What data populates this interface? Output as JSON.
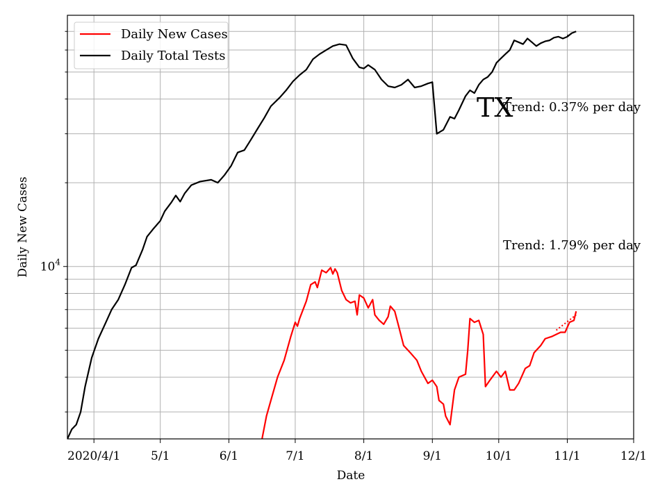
{
  "chart_data": {
    "type": "line",
    "title": "",
    "xlabel": "Date",
    "ylabel": "Daily New Cases",
    "y_scale": "log",
    "ylim": [
      2400,
      80000
    ],
    "xlim": [
      "2020-03-20",
      "2020-12-01"
    ],
    "x_ticks": [
      {
        "date": "2020-04-01",
        "label": "2020/4/1"
      },
      {
        "date": "2020-05-01",
        "label": "5/1"
      },
      {
        "date": "2020-06-01",
        "label": "6/1"
      },
      {
        "date": "2020-07-01",
        "label": "7/1"
      },
      {
        "date": "2020-08-01",
        "label": "8/1"
      },
      {
        "date": "2020-09-01",
        "label": "9/1"
      },
      {
        "date": "2020-10-01",
        "label": "10/1"
      },
      {
        "date": "2020-11-01",
        "label": "11/1"
      },
      {
        "date": "2020-12-01",
        "label": "12/1"
      }
    ],
    "y_major_tick": {
      "value": 10000,
      "label_base": "10",
      "label_exp": "4"
    },
    "y_minor_ticks": [
      3000,
      4000,
      5000,
      6000,
      7000,
      8000,
      9000,
      20000,
      30000,
      40000,
      50000,
      60000,
      70000
    ],
    "grid": true,
    "legend": {
      "position": "top-left"
    },
    "series": [
      {
        "name": "Daily New Cases",
        "color": "#ff0000",
        "points": [
          [
            "2020-06-16",
            2400
          ],
          [
            "2020-06-18",
            2900
          ],
          [
            "2020-06-20",
            3300
          ],
          [
            "2020-06-23",
            4000
          ],
          [
            "2020-06-26",
            4600
          ],
          [
            "2020-06-29",
            5600
          ],
          [
            "2020-07-01",
            6300
          ],
          [
            "2020-07-02",
            6100
          ],
          [
            "2020-07-03",
            6500
          ],
          [
            "2020-07-06",
            7500
          ],
          [
            "2020-07-08",
            8600
          ],
          [
            "2020-07-10",
            8800
          ],
          [
            "2020-07-11",
            8400
          ],
          [
            "2020-07-13",
            9700
          ],
          [
            "2020-07-15",
            9500
          ],
          [
            "2020-07-17",
            9900
          ],
          [
            "2020-07-18",
            9400
          ],
          [
            "2020-07-19",
            9800
          ],
          [
            "2020-07-20",
            9500
          ],
          [
            "2020-07-22",
            8200
          ],
          [
            "2020-07-24",
            7600
          ],
          [
            "2020-07-26",
            7400
          ],
          [
            "2020-07-28",
            7500
          ],
          [
            "2020-07-29",
            6700
          ],
          [
            "2020-07-30",
            7900
          ],
          [
            "2020-08-01",
            7700
          ],
          [
            "2020-08-03",
            7100
          ],
          [
            "2020-08-05",
            7600
          ],
          [
            "2020-08-06",
            6700
          ],
          [
            "2020-08-08",
            6400
          ],
          [
            "2020-08-10",
            6200
          ],
          [
            "2020-08-12",
            6600
          ],
          [
            "2020-08-13",
            7200
          ],
          [
            "2020-08-15",
            6900
          ],
          [
            "2020-08-17",
            6000
          ],
          [
            "2020-08-19",
            5200
          ],
          [
            "2020-08-22",
            4900
          ],
          [
            "2020-08-25",
            4600
          ],
          [
            "2020-08-27",
            4200
          ],
          [
            "2020-08-30",
            3800
          ],
          [
            "2020-09-01",
            3900
          ],
          [
            "2020-09-03",
            3700
          ],
          [
            "2020-09-04",
            3300
          ],
          [
            "2020-09-06",
            3200
          ],
          [
            "2020-09-07",
            2900
          ],
          [
            "2020-09-09",
            2700
          ],
          [
            "2020-09-11",
            3600
          ],
          [
            "2020-09-13",
            4000
          ],
          [
            "2020-09-16",
            4100
          ],
          [
            "2020-09-17",
            5000
          ],
          [
            "2020-09-18",
            6500
          ],
          [
            "2020-09-20",
            6300
          ],
          [
            "2020-09-22",
            6400
          ],
          [
            "2020-09-24",
            5700
          ],
          [
            "2020-09-25",
            3700
          ],
          [
            "2020-09-27",
            3900
          ],
          [
            "2020-09-30",
            4200
          ],
          [
            "2020-10-02",
            4000
          ],
          [
            "2020-10-04",
            4200
          ],
          [
            "2020-10-06",
            3600
          ],
          [
            "2020-10-08",
            3600
          ],
          [
            "2020-10-10",
            3800
          ],
          [
            "2020-10-13",
            4300
          ],
          [
            "2020-10-15",
            4400
          ],
          [
            "2020-10-17",
            4900
          ],
          [
            "2020-10-20",
            5200
          ],
          [
            "2020-10-22",
            5500
          ],
          [
            "2020-10-25",
            5600
          ],
          [
            "2020-10-27",
            5700
          ],
          [
            "2020-10-29",
            5800
          ],
          [
            "2020-10-31",
            5800
          ],
          [
            "2020-11-02",
            6300
          ],
          [
            "2020-11-04",
            6400
          ],
          [
            "2020-11-05",
            6900
          ]
        ]
      },
      {
        "name": "Daily Total Tests",
        "color": "#000000",
        "points": [
          [
            "2020-03-20",
            2400
          ],
          [
            "2020-03-22",
            2600
          ],
          [
            "2020-03-24",
            2700
          ],
          [
            "2020-03-26",
            3000
          ],
          [
            "2020-03-28",
            3700
          ],
          [
            "2020-03-31",
            4700
          ],
          [
            "2020-04-03",
            5500
          ],
          [
            "2020-04-06",
            6200
          ],
          [
            "2020-04-09",
            7000
          ],
          [
            "2020-04-12",
            7600
          ],
          [
            "2020-04-15",
            8600
          ],
          [
            "2020-04-18",
            9900
          ],
          [
            "2020-04-20",
            10100
          ],
          [
            "2020-04-23",
            11500
          ],
          [
            "2020-04-25",
            12800
          ],
          [
            "2020-04-28",
            13700
          ],
          [
            "2020-05-01",
            14600
          ],
          [
            "2020-05-03",
            15800
          ],
          [
            "2020-05-06",
            17000
          ],
          [
            "2020-05-08",
            18000
          ],
          [
            "2020-05-10",
            17100
          ],
          [
            "2020-05-12",
            18300
          ],
          [
            "2020-05-15",
            19600
          ],
          [
            "2020-05-19",
            20200
          ],
          [
            "2020-05-24",
            20500
          ],
          [
            "2020-05-27",
            20000
          ],
          [
            "2020-05-30",
            21300
          ],
          [
            "2020-06-02",
            23000
          ],
          [
            "2020-06-05",
            25700
          ],
          [
            "2020-06-08",
            26200
          ],
          [
            "2020-06-11",
            28600
          ],
          [
            "2020-06-14",
            31300
          ],
          [
            "2020-06-17",
            34200
          ],
          [
            "2020-06-20",
            37700
          ],
          [
            "2020-06-24",
            40500
          ],
          [
            "2020-06-27",
            43100
          ],
          [
            "2020-06-30",
            46300
          ],
          [
            "2020-07-03",
            48800
          ],
          [
            "2020-07-06",
            51000
          ],
          [
            "2020-07-09",
            55600
          ],
          [
            "2020-07-12",
            58000
          ],
          [
            "2020-07-15",
            60000
          ],
          [
            "2020-07-18",
            62000
          ],
          [
            "2020-07-21",
            63000
          ],
          [
            "2020-07-24",
            62500
          ],
          [
            "2020-07-27",
            56000
          ],
          [
            "2020-07-30",
            52000
          ],
          [
            "2020-08-01",
            51500
          ],
          [
            "2020-08-03",
            53000
          ],
          [
            "2020-08-06",
            51000
          ],
          [
            "2020-08-09",
            47000
          ],
          [
            "2020-08-12",
            44500
          ],
          [
            "2020-08-15",
            44000
          ],
          [
            "2020-08-18",
            45000
          ],
          [
            "2020-08-21",
            47000
          ],
          [
            "2020-08-24",
            44000
          ],
          [
            "2020-08-27",
            44500
          ],
          [
            "2020-08-30",
            45500
          ],
          [
            "2020-09-01",
            46000
          ],
          [
            "2020-09-03",
            30000
          ],
          [
            "2020-09-06",
            31000
          ],
          [
            "2020-09-09",
            34500
          ],
          [
            "2020-09-11",
            34000
          ],
          [
            "2020-09-13",
            36500
          ],
          [
            "2020-09-16",
            41000
          ],
          [
            "2020-09-18",
            43000
          ],
          [
            "2020-09-20",
            42000
          ],
          [
            "2020-09-22",
            45000
          ],
          [
            "2020-09-24",
            47000
          ],
          [
            "2020-09-26",
            48000
          ],
          [
            "2020-09-28",
            50000
          ],
          [
            "2020-09-30",
            54000
          ],
          [
            "2020-10-02",
            56000
          ],
          [
            "2020-10-04",
            58000
          ],
          [
            "2020-10-06",
            60000
          ],
          [
            "2020-10-08",
            65000
          ],
          [
            "2020-10-10",
            64000
          ],
          [
            "2020-10-12",
            63000
          ],
          [
            "2020-10-14",
            66000
          ],
          [
            "2020-10-16",
            64000
          ],
          [
            "2020-10-18",
            62000
          ],
          [
            "2020-10-20",
            63500
          ],
          [
            "2020-10-22",
            64500
          ],
          [
            "2020-10-24",
            65000
          ],
          [
            "2020-10-26",
            66500
          ],
          [
            "2020-10-28",
            67000
          ],
          [
            "2020-10-30",
            66000
          ],
          [
            "2020-11-01",
            67000
          ],
          [
            "2020-11-03",
            69000
          ],
          [
            "2020-11-05",
            70000
          ]
        ]
      }
    ],
    "trend_lines": [
      {
        "color": "#000000",
        "points": [
          [
            "2020-11-01",
            67500
          ],
          [
            "2020-11-04",
            69500
          ]
        ]
      },
      {
        "color": "#ff0000",
        "points": [
          [
            "2020-10-27",
            5900
          ],
          [
            "2020-11-05",
            6700
          ]
        ]
      }
    ],
    "annotations": {
      "state": "TX",
      "trend_tests": "Trend: 0.37% per day",
      "trend_cases": "Trend: 1.79% per day"
    }
  }
}
